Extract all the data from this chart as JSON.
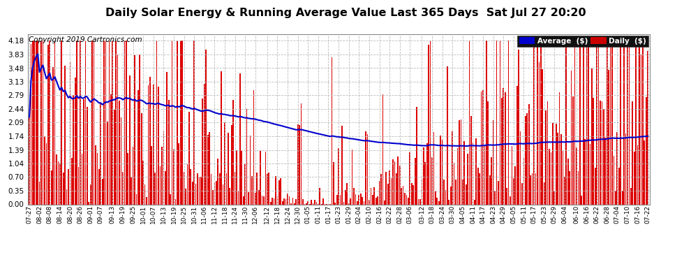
{
  "title": "Daily Solar Energy & Running Average Value Last 365 Days  Sat Jul 27 20:20",
  "copyright": "Copyright 2019 Cartronics.com",
  "yticks": [
    0.0,
    0.35,
    0.7,
    1.04,
    1.39,
    1.74,
    2.09,
    2.44,
    2.79,
    3.13,
    3.48,
    3.83,
    4.18
  ],
  "ymax": 4.35,
  "bar_color": "#dd0000",
  "avg_color": "#0000cc",
  "bg_color": "#ffffff",
  "grid_color": "#bbbbbb",
  "legend_avg_color": "#0000cc",
  "legend_daily_color": "#cc0000",
  "title_fontsize": 11.5,
  "copyright_fontsize": 7.5
}
